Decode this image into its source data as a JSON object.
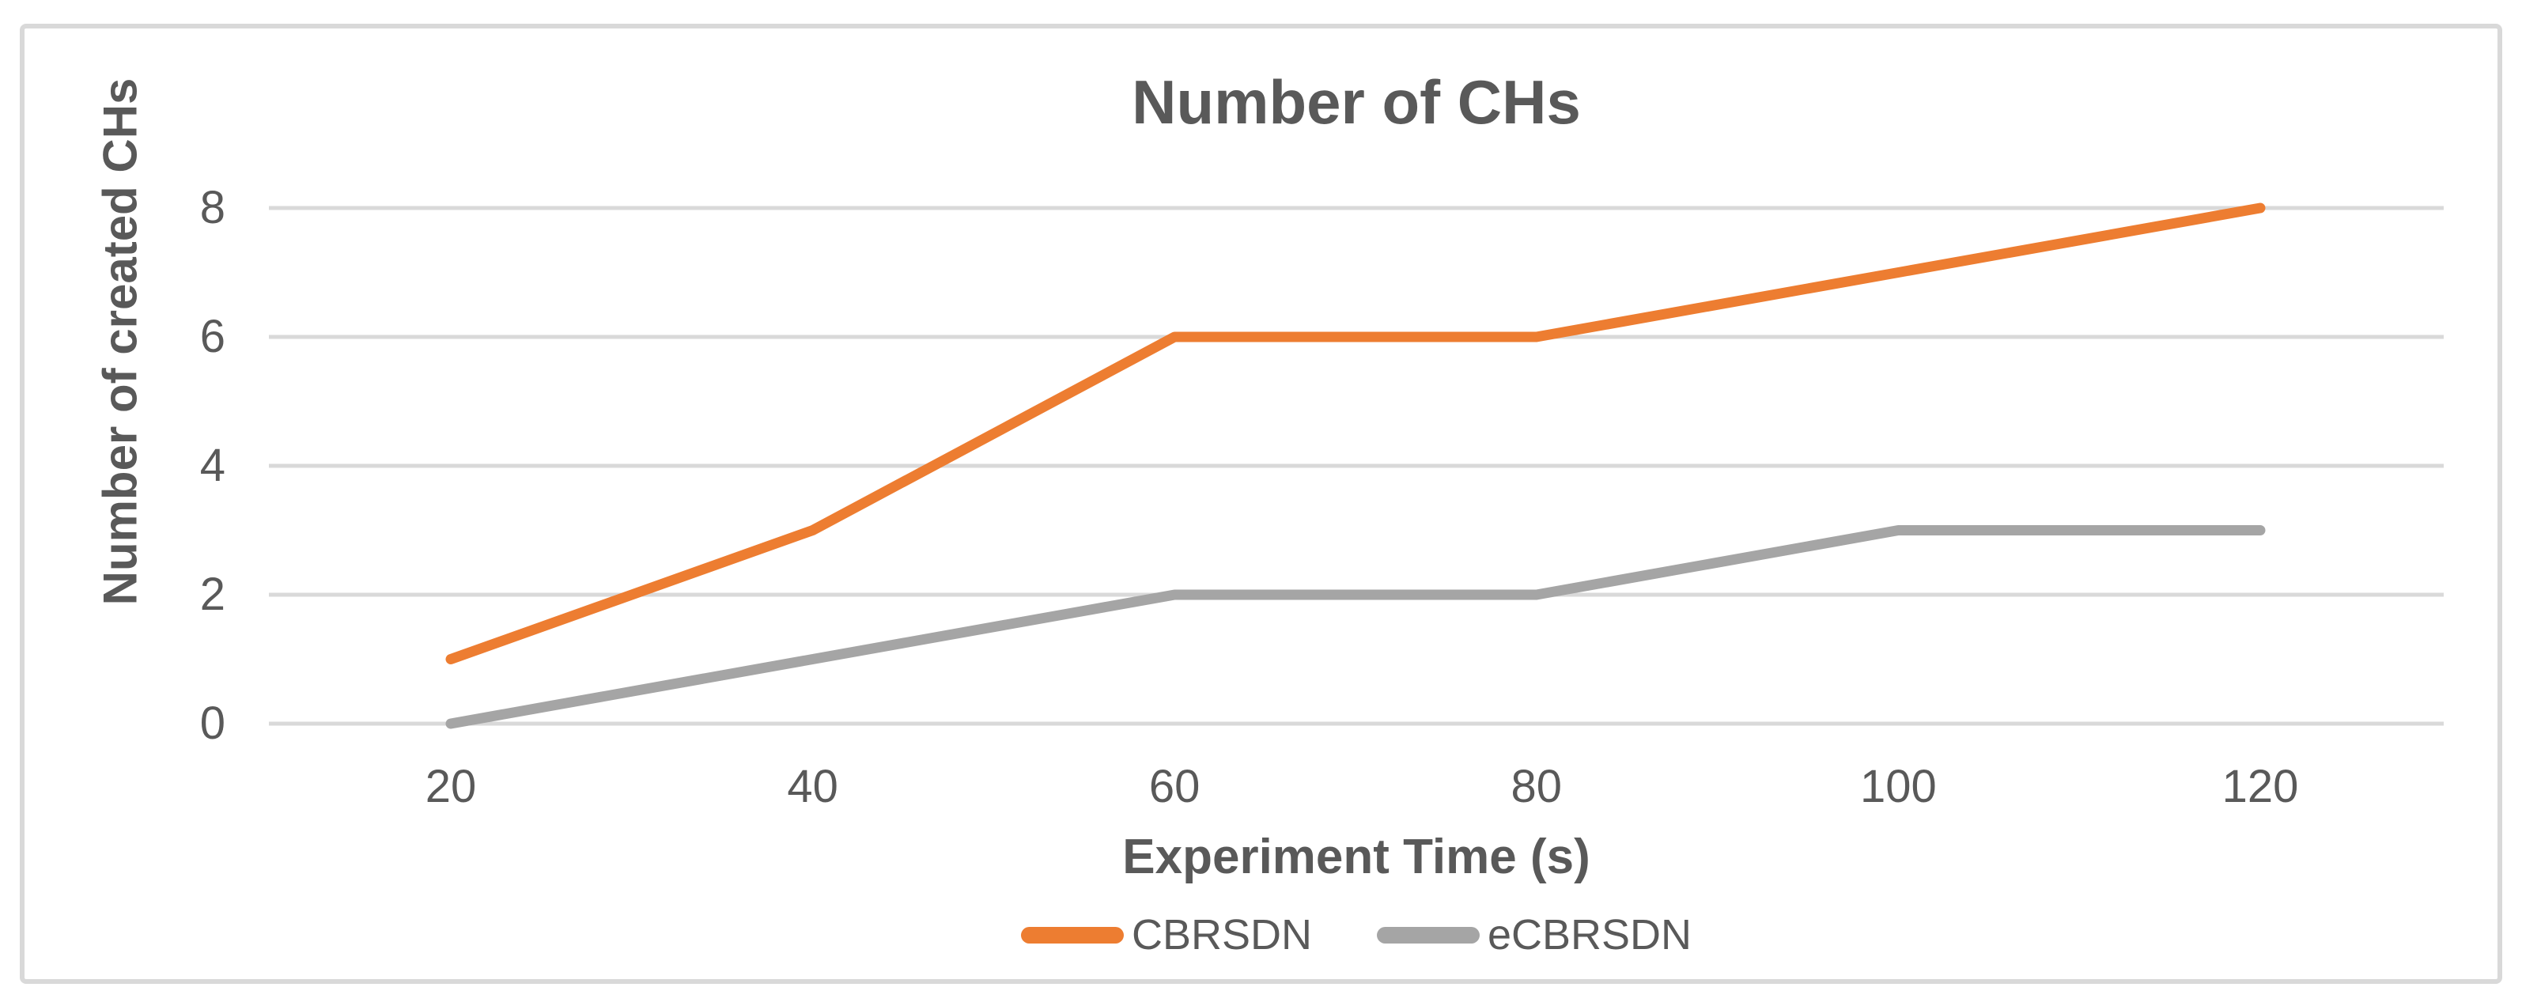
{
  "figure": {
    "title": "Number of CHs",
    "x_axis_label": "Experiment Time (s)",
    "y_axis_label": "Number of created CHs"
  },
  "colors": {
    "text": "#595959",
    "gridline": "#d9d9d9",
    "frame_border": "#d9d9d9",
    "background": "#ffffff",
    "cbrsdn_orange": "#ED7D31",
    "ecbrsdn_gray": "#A5A5A5"
  },
  "chart_data": {
    "type": "line",
    "title": "Number of CHs",
    "xlabel": "Experiment Time (s)",
    "ylabel": "Number of created CHs",
    "x": [
      20,
      40,
      60,
      80,
      100,
      120
    ],
    "series": [
      {
        "name": "CBRSDN",
        "color": "#ED7D31",
        "values": [
          1,
          3,
          6,
          6,
          7,
          8
        ]
      },
      {
        "name": "eCBRSDN",
        "color": "#A5A5A5",
        "values": [
          0,
          1,
          2,
          2,
          3,
          3
        ]
      }
    ],
    "xticks": [
      20,
      40,
      60,
      80,
      100,
      120
    ],
    "yticks": [
      0,
      2,
      4,
      6,
      8
    ],
    "ylim": [
      0,
      8
    ],
    "grid": "horizontal",
    "legend_position": "bottom"
  }
}
